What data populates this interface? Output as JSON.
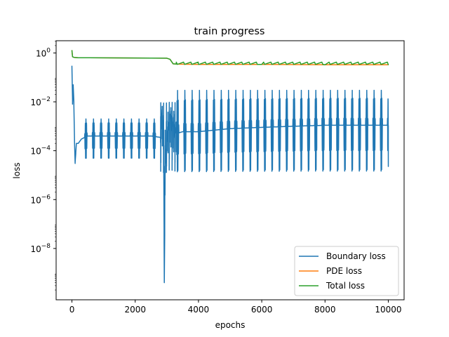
{
  "chart_data": {
    "type": "line",
    "title": "train progress",
    "xlabel": "epochs",
    "ylabel": "loss",
    "y_scale": "log",
    "xlim": [
      -500,
      10500
    ],
    "ylim_exponent": [
      -10.1,
      0.5
    ],
    "x_ticks": [
      0,
      2000,
      4000,
      6000,
      8000,
      10000
    ],
    "x_tick_labels": [
      "0",
      "2000",
      "4000",
      "6000",
      "8000",
      "10000"
    ],
    "y_tick_exponents": [
      0,
      -2,
      -4,
      -6,
      -8
    ],
    "y_tick_base": "10",
    "y_tick_exp_labels": [
      "0",
      "−2",
      "−4",
      "−6",
      "−8"
    ],
    "legend_position": "lower-right",
    "grid": false,
    "series": [
      {
        "name": "Boundary loss",
        "color": "#1f77b4",
        "x": [
          0,
          20,
          40,
          60,
          80,
          100,
          140,
          200,
          300,
          400,
          500,
          700,
          1000,
          1500,
          2000,
          2500,
          2800,
          2850,
          2900,
          2920,
          2950,
          3000,
          3100,
          3200,
          3300,
          3500,
          4000,
          5000,
          6000,
          7000,
          8000,
          9000,
          10000
        ],
        "y": [
          0.3,
          0.008,
          0.05,
          0.01,
          0.0003,
          3e-05,
          0.0002,
          0.0002,
          0.0003,
          0.00035,
          0.0004,
          0.0004,
          0.0004,
          0.0004,
          0.0004,
          0.0004,
          0.00035,
          0.005,
          0.0001,
          4e-10,
          3e-05,
          0.0003,
          0.003,
          0.001,
          0.0005,
          0.0006,
          0.0006,
          0.0008,
          0.0009,
          0.001,
          0.0011,
          0.0011,
          0.0011
        ],
        "spike_intervals": [
          {
            "from": 400,
            "to": 2750,
            "period": 240,
            "high": 0.002,
            "low": 4e-05
          },
          {
            "from": 2800,
            "to": 3300,
            "period": 45,
            "high": 0.01,
            "low": 1e-05
          },
          {
            "from": 3300,
            "to": 10050,
            "period": 230,
            "high": 0.03,
            "low": 1e-05
          }
        ]
      },
      {
        "name": "PDE loss",
        "color": "#ff7f0e",
        "x": [
          0,
          20,
          60,
          200,
          1000,
          2000,
          3000,
          3100,
          3200,
          3300,
          4000,
          6000,
          8000,
          10000
        ],
        "y": [
          1.3,
          0.7,
          0.66,
          0.64,
          0.63,
          0.62,
          0.61,
          0.55,
          0.36,
          0.35,
          0.34,
          0.34,
          0.33,
          0.33
        ]
      },
      {
        "name": "Total loss",
        "color": "#2ca02c",
        "x": [
          0,
          20,
          60,
          200,
          1000,
          2000,
          3000,
          3100,
          3200,
          3300,
          4000,
          6000,
          8000,
          10000
        ],
        "y": [
          1.3,
          0.7,
          0.66,
          0.64,
          0.63,
          0.62,
          0.61,
          0.55,
          0.36,
          0.35,
          0.34,
          0.34,
          0.33,
          0.33
        ]
      }
    ]
  }
}
